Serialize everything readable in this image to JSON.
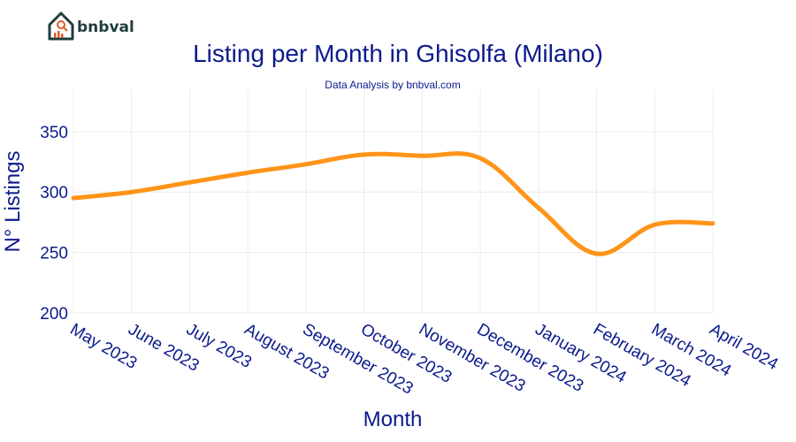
{
  "brand": {
    "name": "bnbval",
    "logo_icon": "house-chart-icon"
  },
  "chart_data": {
    "type": "line",
    "title": "Listing per Month in Ghisolfa (Milano)",
    "subtitle": "Data Analysis by bnbval.com",
    "xlabel": "Month",
    "ylabel": "N° Listings",
    "categories": [
      "May 2023",
      "June 2023",
      "July 2023",
      "August 2023",
      "September 2023",
      "October 2023",
      "November 2023",
      "December 2023",
      "January 2024",
      "February 2024",
      "March 2024",
      "April 2024"
    ],
    "series": [
      {
        "values": [
          295,
          300,
          308,
          316,
          323,
          331,
          330,
          328,
          287,
          249,
          273,
          274
        ]
      }
    ],
    "ylim": [
      200,
      385
    ],
    "yticks": [
      200,
      250,
      300,
      350
    ],
    "grid": true,
    "line_color": "#ff9419",
    "text_color": "#0b1a8c"
  }
}
